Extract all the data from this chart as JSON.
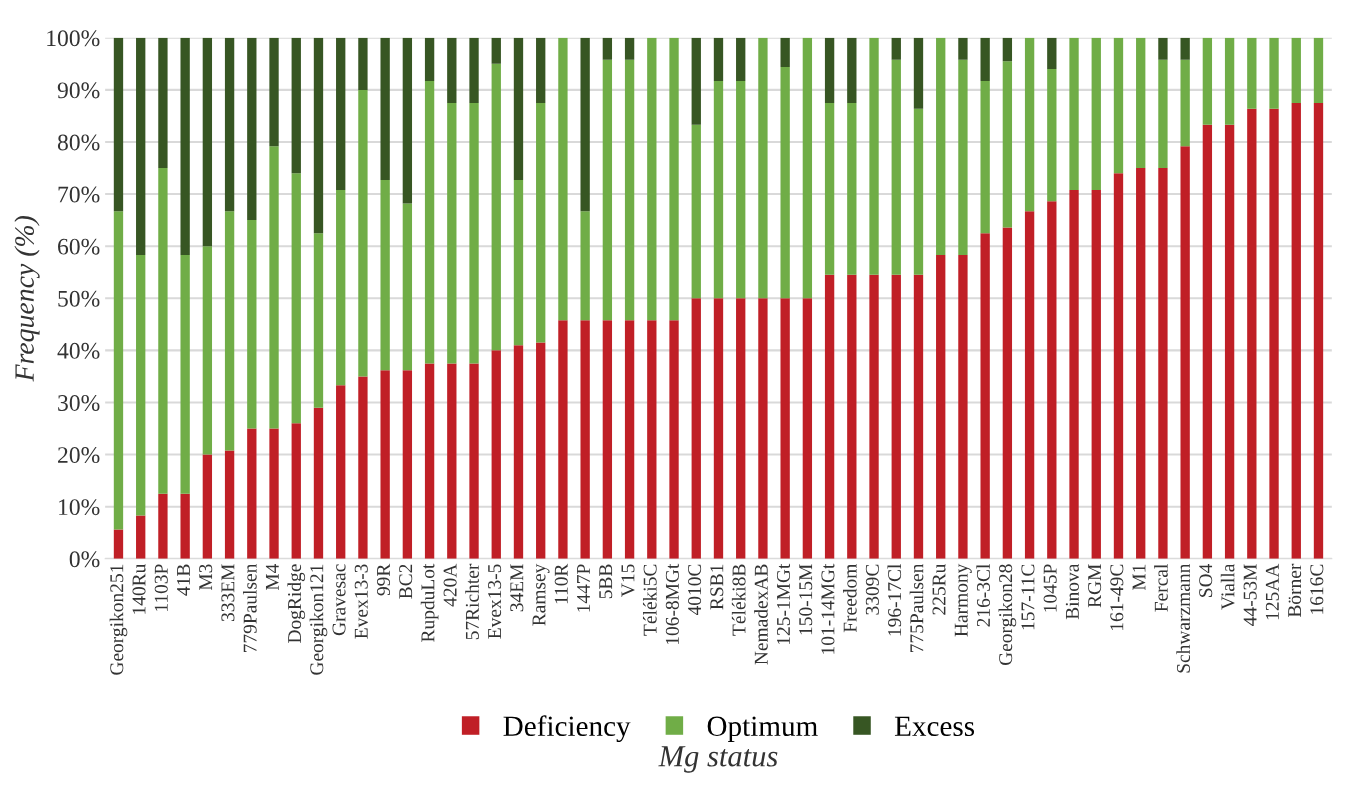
{
  "chart_data": {
    "type": "bar",
    "stacked": true,
    "xlabel": "Mg status",
    "ylabel": "Frequency (%)",
    "categories": [
      "Georgikon251",
      "140Ru",
      "1103P",
      "41B",
      "M3",
      "333EM",
      "779Paulsen",
      "M4",
      "DogRidge",
      "Georgikon121",
      "Gravesac",
      "Evex13-3",
      "99R",
      "BC2",
      "RupduLot",
      "420A",
      "57Richter",
      "Evex13-5",
      "34EM",
      "Ramsey",
      "110R",
      "1447P",
      "5BB",
      "V15",
      "Téléki5C",
      "106-8MGt",
      "4010C",
      "RSB1",
      "Téléki8B",
      "NemadexAB",
      "125-1MGt",
      "150-15M",
      "101-14MGt",
      "Freedom",
      "3309C",
      "196-17Cl",
      "775Paulsen",
      "225Ru",
      "Harmony",
      "216-3Cl",
      "Georgikon28",
      "157-11C",
      "1045P",
      "Binova",
      "RGM",
      "161-49C",
      "M1",
      "Fercal",
      "Schwarzmann",
      "SO4",
      "Vialla",
      "44-53M",
      "125AA",
      "Börner",
      "1616C"
    ],
    "series": [
      {
        "name": "Deficiency",
        "color": "#c01f26",
        "values": [
          5.6,
          8.3,
          12.5,
          12.5,
          20,
          20.8,
          25,
          25,
          26,
          29,
          33.3,
          35,
          36.2,
          36.2,
          37.5,
          37.5,
          37.5,
          40,
          41,
          41.5,
          45.8,
          45.8,
          45.8,
          45.8,
          45.8,
          45.8,
          50,
          50,
          50,
          50,
          50,
          50,
          54.5,
          54.5,
          54.5,
          54.5,
          54.5,
          58.3,
          58.3,
          62.5,
          63.6,
          66.7,
          68.6,
          70.8,
          70.8,
          74,
          75,
          75,
          79.2,
          83.3,
          83.3,
          86.4,
          86.4,
          87.5,
          87.5
        ]
      },
      {
        "name": "Optimum",
        "color": "#70ad47",
        "values": [
          61.1,
          50,
          62.5,
          45.8,
          40,
          45.9,
          40,
          54.2,
          48,
          33.5,
          37.5,
          55,
          36.5,
          32,
          54.2,
          50,
          50,
          55,
          31.7,
          46,
          54.2,
          20.9,
          50,
          50,
          54.2,
          54.2,
          33.3,
          41.7,
          41.7,
          50,
          44.4,
          50,
          33,
          33,
          45.5,
          41.3,
          31.9,
          41.7,
          37.5,
          29.2,
          31.9,
          33.3,
          25.4,
          29.2,
          29.2,
          26,
          25,
          20.8,
          16.6,
          16.7,
          16.7,
          13.6,
          13.6,
          12.5,
          12.5
        ]
      },
      {
        "name": "Excess",
        "color": "#375623",
        "values": [
          33.3,
          41.7,
          25,
          41.7,
          40,
          33.3,
          35,
          20.8,
          26,
          37.5,
          29.2,
          10,
          27.3,
          31.8,
          8.3,
          12.5,
          12.5,
          5,
          27.3,
          12.5,
          0,
          33.3,
          4.2,
          4.2,
          0,
          0,
          16.7,
          8.3,
          8.3,
          0,
          5.6,
          0,
          12.5,
          12.5,
          0,
          4.2,
          13.6,
          0,
          4.2,
          8.3,
          4.5,
          0,
          6,
          0,
          0,
          0,
          0,
          4.2,
          4.2,
          0,
          0,
          0,
          0,
          0,
          0
        ]
      }
    ],
    "ylim": [
      0,
      100
    ],
    "yticks": [
      {
        "value": 0,
        "label": "0%"
      },
      {
        "value": 10,
        "label": "10%"
      },
      {
        "value": 20,
        "label": "20%"
      },
      {
        "value": 30,
        "label": "30%"
      },
      {
        "value": 40,
        "label": "40%"
      },
      {
        "value": 50,
        "label": "50%"
      },
      {
        "value": 60,
        "label": "60%"
      },
      {
        "value": 70,
        "label": "70%"
      },
      {
        "value": 80,
        "label": "80%"
      },
      {
        "value": 90,
        "label": "90%"
      },
      {
        "value": 100,
        "label": "100%"
      }
    ],
    "grid": "y",
    "legend": "bottom"
  }
}
